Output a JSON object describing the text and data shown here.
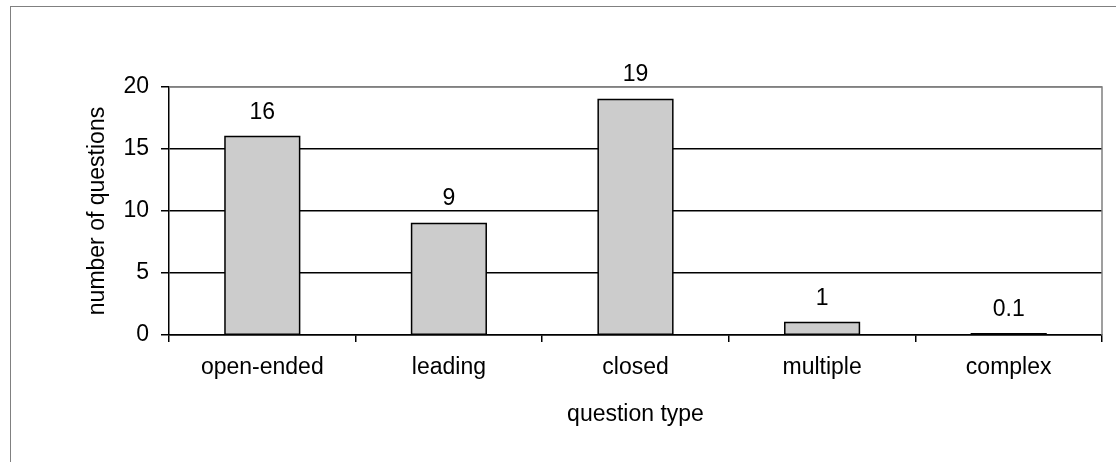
{
  "chart_data": {
    "type": "bar",
    "categories": [
      "open-ended",
      "leading",
      "closed",
      "multiple",
      "complex"
    ],
    "values": [
      16,
      9,
      19,
      1,
      0.1
    ],
    "color": "#cccccc",
    "xlabel": "question type",
    "ylabel": "number of questions",
    "ylim": [
      0,
      20
    ],
    "yticks": [
      0,
      5,
      10,
      15,
      20
    ],
    "grid": "y",
    "data_labels": true,
    "legend": false
  }
}
